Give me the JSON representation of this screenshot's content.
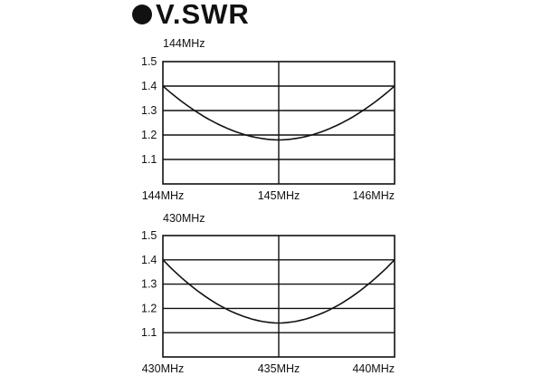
{
  "title": "V.SWR",
  "chart_data": [
    {
      "type": "line",
      "title": "144MHz",
      "xlabel": "",
      "ylabel": "V.SWR",
      "x_ticks": [
        "144MHz",
        "145MHz",
        "146MHz"
      ],
      "y_ticks": [
        "1.5",
        "1.4",
        "1.3",
        "1.2",
        "1.1"
      ],
      "ylim": [
        1.0,
        1.5
      ],
      "xlim": [
        144,
        146
      ],
      "grid": true,
      "series": [
        {
          "name": "VSWR",
          "x": [
            144,
            144.25,
            144.5,
            144.75,
            145,
            145.25,
            145.5,
            145.75,
            146
          ],
          "y": [
            1.4,
            1.3,
            1.23,
            1.19,
            1.18,
            1.19,
            1.23,
            1.3,
            1.4
          ]
        }
      ]
    },
    {
      "type": "line",
      "title": "430MHz",
      "xlabel": "",
      "ylabel": "V.SWR",
      "x_ticks": [
        "430MHz",
        "435MHz",
        "440MHz"
      ],
      "y_ticks": [
        "1.5",
        "1.4",
        "1.3",
        "1.2",
        "1.1"
      ],
      "ylim": [
        1.0,
        1.5
      ],
      "xlim": [
        430,
        440
      ],
      "grid": true,
      "series": [
        {
          "name": "VSWR",
          "x": [
            430,
            431.25,
            432.5,
            433.75,
            435,
            436.25,
            437.5,
            438.75,
            440
          ],
          "y": [
            1.4,
            1.28,
            1.2,
            1.15,
            1.14,
            1.15,
            1.2,
            1.28,
            1.4
          ]
        }
      ]
    }
  ]
}
